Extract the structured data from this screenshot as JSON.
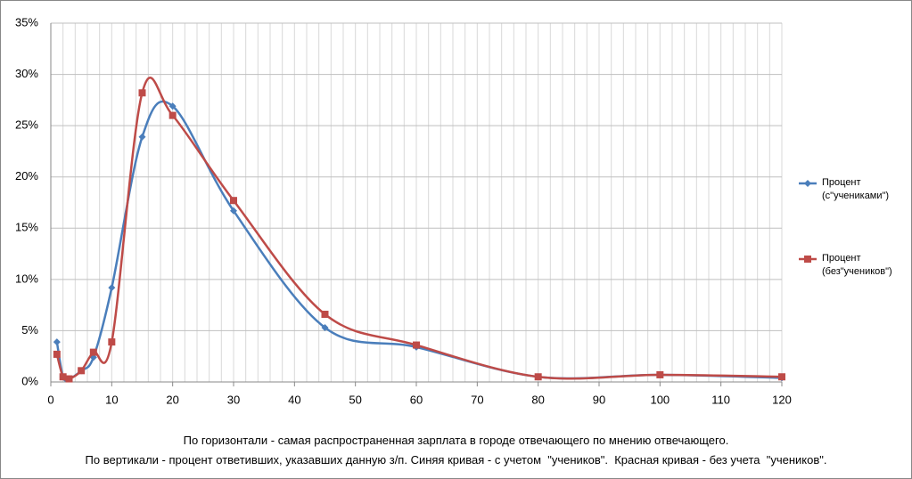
{
  "chart_data": {
    "type": "scatter",
    "smooth": true,
    "x": [
      1,
      2,
      3,
      5,
      7,
      10,
      15,
      20,
      30,
      45,
      60,
      80,
      100,
      120
    ],
    "series": [
      {
        "name": "Процент (с\"учениками\")",
        "color": "#4a7ebb",
        "marker": "diamond",
        "values": [
          3.9,
          0.5,
          0.3,
          1.1,
          2.4,
          9.2,
          23.9,
          26.9,
          16.7,
          5.3,
          3.4,
          0.5,
          0.7,
          0.4
        ]
      },
      {
        "name": "Процент (без\"учеников\")",
        "color": "#be4b48",
        "marker": "square",
        "values": [
          2.7,
          0.5,
          0.3,
          1.1,
          2.9,
          3.9,
          28.2,
          26.0,
          17.7,
          6.6,
          3.6,
          0.5,
          0.7,
          0.5
        ]
      }
    ],
    "xlim": [
      0,
      120
    ],
    "xticks": [
      0,
      10,
      20,
      30,
      40,
      50,
      60,
      70,
      80,
      90,
      100,
      110,
      120
    ],
    "x_minor_step": 2,
    "ylim": [
      0,
      35
    ],
    "yticks": [
      {
        "value": 0,
        "label": "0%"
      },
      {
        "value": 5,
        "label": "5%"
      },
      {
        "value": 10,
        "label": "10%"
      },
      {
        "value": 15,
        "label": "15%"
      },
      {
        "value": 20,
        "label": "20%"
      },
      {
        "value": 25,
        "label": "25%"
      },
      {
        "value": 30,
        "label": "30%"
      },
      {
        "value": 35,
        "label": "35%"
      }
    ],
    "grid": true,
    "legend": "right",
    "annotations": [
      "По горизонтали - самая распространенная зарплата в городе отвечающего по мнению отвечающего.",
      "По вертикали - процент ответивших, указавших данную з/п. Синяя кривая - с учетом  \"учеников\".  Красная кривая - без учета  \"учеников\"."
    ]
  }
}
